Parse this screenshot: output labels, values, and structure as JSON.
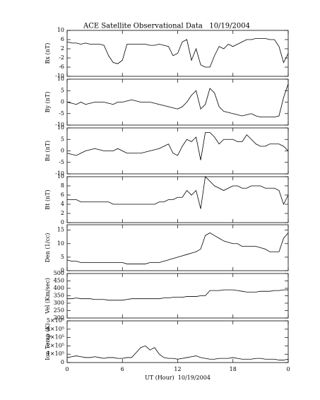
{
  "chart_data": [
    {
      "type": "line",
      "title": "ACE Satellite Observational Data   10/19/2004",
      "ylabel": "Bx (nT)",
      "color": "#000000",
      "xlim": [
        0,
        24
      ],
      "ylim": [
        -10,
        10
      ],
      "yticks": [
        -10,
        -6,
        -2,
        2,
        6,
        10
      ],
      "x": [
        0,
        0.5,
        1,
        1.5,
        2,
        2.5,
        3,
        3.5,
        4,
        4.5,
        5,
        5.5,
        6,
        6.5,
        7,
        7.5,
        8,
        8.5,
        9,
        9.5,
        10,
        10.5,
        11,
        11.5,
        12,
        12.5,
        13,
        13.5,
        14,
        14.5,
        15,
        15.5,
        16,
        16.5,
        17,
        17.5,
        18,
        18.5,
        19,
        19.5,
        20,
        20.5,
        21,
        21.5,
        22,
        22.5,
        23,
        23.5,
        24
      ],
      "values": [
        5,
        4.5,
        4.5,
        4,
        4.5,
        4,
        4,
        4,
        3.5,
        -1,
        -4,
        -4.5,
        -3,
        4,
        4,
        4,
        4,
        4,
        3.5,
        3.5,
        4,
        3.5,
        3,
        -1,
        0,
        5,
        6,
        -3,
        2,
        -5,
        -6,
        -6,
        -1,
        3,
        2,
        4,
        3,
        4,
        5,
        6,
        6,
        6.5,
        6.5,
        6.5,
        6,
        6,
        3,
        -4,
        0
      ]
    },
    {
      "type": "line",
      "ylabel": "By (nT)",
      "color": "#000000",
      "xlim": [
        0,
        24
      ],
      "ylim": [
        -10,
        10
      ],
      "yticks": [
        -10,
        -5,
        0,
        5,
        10
      ],
      "x": [
        0,
        0.5,
        1,
        1.5,
        2,
        2.5,
        3,
        3.5,
        4,
        4.5,
        5,
        5.5,
        6,
        6.5,
        7,
        7.5,
        8,
        8.5,
        9,
        9.5,
        10,
        10.5,
        11,
        11.5,
        12,
        12.5,
        13,
        13.5,
        14,
        14.5,
        15,
        15.5,
        16,
        16.5,
        17,
        17.5,
        18,
        18.5,
        19,
        19.5,
        20,
        20.5,
        21,
        21.5,
        22,
        22.5,
        23,
        23.5,
        24
      ],
      "values": [
        0,
        -0.5,
        -1,
        0,
        -1,
        -0.5,
        0,
        0,
        0,
        -0.5,
        -1,
        0,
        0,
        0.5,
        1,
        0.5,
        0,
        0,
        0,
        -0.5,
        -1,
        -1.5,
        -2,
        -2.5,
        -3,
        -2,
        0,
        3,
        5,
        -3,
        -1,
        6,
        4,
        -2,
        -4,
        -4.5,
        -5,
        -5.5,
        -6,
        -5.5,
        -5,
        -6,
        -6.5,
        -6.5,
        -6.5,
        -6.5,
        -6,
        2,
        8
      ]
    },
    {
      "type": "line",
      "ylabel": "Bz (nT)",
      "color": "#000000",
      "xlim": [
        0,
        24
      ],
      "ylim": [
        -10,
        10
      ],
      "yticks": [
        -10,
        -5,
        0,
        5,
        10
      ],
      "x": [
        0,
        0.5,
        1,
        1.5,
        2,
        2.5,
        3,
        3.5,
        4,
        4.5,
        5,
        5.5,
        6,
        6.5,
        7,
        7.5,
        8,
        8.5,
        9,
        9.5,
        10,
        10.5,
        11,
        11.5,
        12,
        12.5,
        13,
        13.5,
        14,
        14.5,
        15,
        15.5,
        16,
        16.5,
        17,
        17.5,
        18,
        18.5,
        19,
        19.5,
        20,
        20.5,
        21,
        21.5,
        22,
        22.5,
        23,
        23.5,
        24
      ],
      "values": [
        -1,
        -1.5,
        -2,
        -1,
        0,
        0.5,
        1,
        0.5,
        0,
        0,
        0,
        1,
        0,
        -1,
        -1,
        -1,
        -1,
        -0.5,
        0,
        0.5,
        1,
        2,
        3,
        -1,
        -2,
        2,
        5,
        4,
        6,
        -4,
        8,
        8,
        6,
        3,
        5,
        5,
        5,
        4,
        4,
        7,
        5,
        3,
        2,
        2,
        3,
        3,
        3,
        2,
        0
      ]
    },
    {
      "type": "line",
      "ylabel": "Bt (nT)",
      "color": "#000000",
      "xlim": [
        0,
        24
      ],
      "ylim": [
        0,
        10
      ],
      "yticks": [
        0,
        2,
        4,
        6,
        8,
        10
      ],
      "x": [
        0,
        0.5,
        1,
        1.5,
        2,
        2.5,
        3,
        3.5,
        4,
        4.5,
        5,
        5.5,
        6,
        6.5,
        7,
        7.5,
        8,
        8.5,
        9,
        9.5,
        10,
        10.5,
        11,
        11.5,
        12,
        12.5,
        13,
        13.5,
        14,
        14.5,
        15,
        15.5,
        16,
        16.5,
        17,
        17.5,
        18,
        18.5,
        19,
        19.5,
        20,
        20.5,
        21,
        21.5,
        22,
        22.5,
        23,
        23.5,
        24
      ],
      "values": [
        5,
        5,
        5,
        4.5,
        4.5,
        4.5,
        4.5,
        4.5,
        4.5,
        4.5,
        4,
        4,
        4,
        4,
        4,
        4,
        4,
        4,
        4,
        4,
        4.5,
        4.5,
        5,
        5,
        5.5,
        5.5,
        7,
        6,
        7,
        3,
        10,
        9,
        8,
        7.5,
        7,
        7.5,
        8,
        8,
        7.5,
        7.5,
        8,
        8,
        8,
        7.5,
        7.5,
        7.5,
        7,
        4,
        6
      ]
    },
    {
      "type": "line",
      "ylabel": "Den (1/cc)",
      "color": "#000000",
      "xlim": [
        0,
        24
      ],
      "ylim": [
        0,
        17
      ],
      "yticks": [
        0,
        5,
        10,
        15
      ],
      "x": [
        0,
        0.5,
        1,
        1.5,
        2,
        2.5,
        3,
        3.5,
        4,
        4.5,
        5,
        5.5,
        6,
        6.5,
        7,
        7.5,
        8,
        8.5,
        9,
        9.5,
        10,
        10.5,
        11,
        11.5,
        12,
        12.5,
        13,
        13.5,
        14,
        14.5,
        15,
        15.5,
        16,
        16.5,
        17,
        17.5,
        18,
        18.5,
        19,
        19.5,
        20,
        20.5,
        21,
        21.5,
        22,
        22.5,
        23,
        23.5,
        24
      ],
      "values": [
        4,
        3.5,
        3.5,
        3,
        3,
        3,
        3,
        3,
        3,
        3,
        3,
        3,
        3,
        2.5,
        2.5,
        2.5,
        2.5,
        2.5,
        3,
        3,
        3,
        3.5,
        4,
        4.5,
        5,
        5.5,
        6,
        6.5,
        7,
        8,
        13,
        14,
        13,
        12,
        11,
        10.5,
        10,
        10,
        9,
        9,
        9,
        9,
        8.5,
        8,
        7,
        7,
        7,
        12,
        14
      ]
    },
    {
      "type": "line",
      "ylabel": "Vel (Km/sec)",
      "color": "#000000",
      "xlim": [
        0,
        24
      ],
      "ylim": [
        200,
        500
      ],
      "yticks": [
        200,
        250,
        300,
        350,
        400,
        450,
        500
      ],
      "x": [
        0,
        0.5,
        1,
        1.5,
        2,
        2.5,
        3,
        3.5,
        4,
        4.5,
        5,
        5.5,
        6,
        6.5,
        7,
        7.5,
        8,
        8.5,
        9,
        9.5,
        10,
        10.5,
        11,
        11.5,
        12,
        12.5,
        13,
        13.5,
        14,
        14.5,
        15,
        15.5,
        16,
        16.5,
        17,
        17.5,
        18,
        18.5,
        19,
        19.5,
        20,
        20.5,
        21,
        21.5,
        22,
        22.5,
        23,
        23.5,
        24
      ],
      "values": [
        330,
        330,
        335,
        330,
        330,
        330,
        325,
        325,
        325,
        320,
        320,
        320,
        320,
        325,
        330,
        330,
        330,
        330,
        330,
        330,
        330,
        335,
        335,
        340,
        340,
        340,
        345,
        345,
        345,
        350,
        350,
        385,
        385,
        385,
        390,
        390,
        390,
        385,
        380,
        375,
        375,
        375,
        380,
        380,
        380,
        385,
        385,
        390,
        390
      ]
    },
    {
      "type": "line",
      "ylabel": "Ion Temp (K)",
      "color": "#000000",
      "xlabel": "UT (Hour)  10/19/2004",
      "xlim": [
        0,
        24
      ],
      "xticks": [
        0,
        6,
        12,
        18,
        {
          "value": 24,
          "label": "0"
        }
      ],
      "ylim": [
        0,
        500000
      ],
      "yticks": [
        0,
        {
          "value": 100000,
          "label": "1×10⁵"
        },
        {
          "value": 200000,
          "label": "2×10⁵"
        },
        {
          "value": 300000,
          "label": "3×10⁵"
        },
        {
          "value": 400000,
          "label": "4×10⁵"
        },
        {
          "value": 500000,
          "label": "5×10⁵"
        }
      ],
      "x": [
        0,
        0.5,
        1,
        1.5,
        2,
        2.5,
        3,
        3.5,
        4,
        4.5,
        5,
        5.5,
        6,
        6.5,
        7,
        7.5,
        8,
        8.5,
        9,
        9.5,
        10,
        10.5,
        11,
        11.5,
        12,
        12.5,
        13,
        13.5,
        14,
        14.5,
        15,
        15.5,
        16,
        16.5,
        17,
        17.5,
        18,
        18.5,
        19,
        19.5,
        20,
        20.5,
        21,
        21.5,
        22,
        22.5,
        23,
        23.5,
        24
      ],
      "values": [
        60000,
        70000,
        80000,
        70000,
        60000,
        60000,
        70000,
        60000,
        50000,
        60000,
        60000,
        50000,
        50000,
        60000,
        60000,
        120000,
        180000,
        200000,
        150000,
        180000,
        100000,
        60000,
        50000,
        50000,
        40000,
        50000,
        60000,
        70000,
        80000,
        60000,
        50000,
        40000,
        40000,
        50000,
        50000,
        50000,
        60000,
        50000,
        40000,
        40000,
        40000,
        50000,
        50000,
        40000,
        40000,
        40000,
        30000,
        30000,
        40000
      ]
    }
  ]
}
